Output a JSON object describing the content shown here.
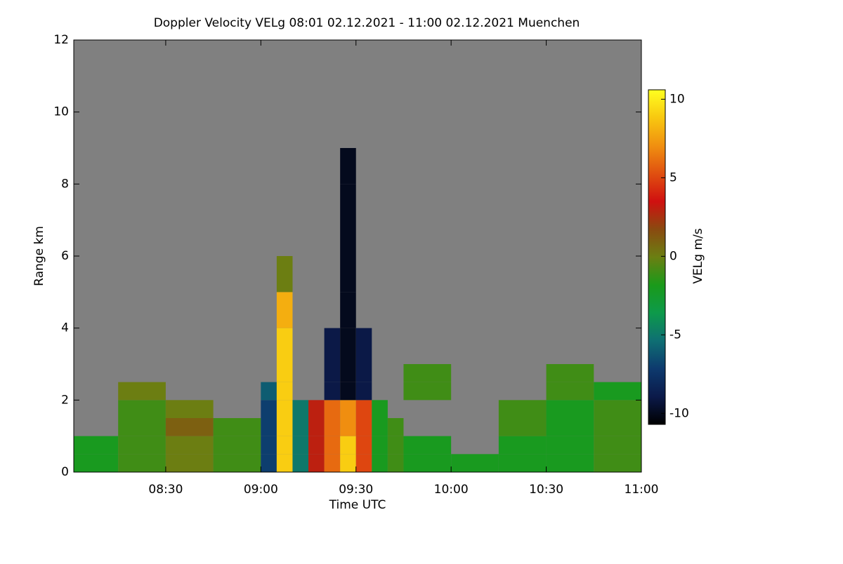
{
  "chart_data": {
    "type": "heatmap",
    "title": "Doppler Velocity VELg   08:01 02.12.2021 - 11:00 02.12.2021 Muenchen",
    "x_label": "Time UTC",
    "y_label": "Range km",
    "colorbar_label": "VELg m/s",
    "x_edges": [
      8.0167,
      8.25,
      8.5,
      8.75,
      9.0,
      9.0833,
      9.1667,
      9.25,
      9.3333,
      9.4167,
      9.5,
      9.5833,
      9.6667,
      9.75,
      10.0,
      10.25,
      10.5,
      10.75,
      11.0
    ],
    "y_edges": [
      0,
      0.5,
      1,
      1.5,
      2,
      2.5,
      3,
      4,
      5,
      6,
      8,
      9,
      12
    ],
    "z": [
      [
        -2,
        -1,
        0,
        -1,
        -7,
        9,
        -5,
        3,
        6,
        9,
        5,
        -2,
        -1,
        -2,
        -2,
        -2,
        -2,
        -1
      ],
      [
        -2,
        -1,
        0,
        -1,
        -7,
        9,
        -5,
        3,
        6,
        9,
        5,
        -2,
        -1,
        -2,
        null,
        -2,
        -2,
        -1
      ],
      [
        null,
        -1,
        1,
        -1,
        -7,
        9,
        -5,
        3,
        6,
        7,
        5,
        -2,
        -1,
        null,
        null,
        -1,
        -2,
        -1
      ],
      [
        null,
        -1,
        0,
        null,
        -7,
        9,
        -5,
        3,
        6,
        7,
        5,
        -2,
        null,
        null,
        null,
        -1,
        -2,
        -1
      ],
      [
        null,
        0,
        null,
        null,
        -6,
        9,
        null,
        null,
        -9,
        -10,
        -9,
        null,
        null,
        -1,
        null,
        null,
        -1,
        -2
      ],
      [
        null,
        null,
        null,
        null,
        null,
        9,
        null,
        null,
        -9,
        -10,
        -9,
        null,
        null,
        -1,
        null,
        null,
        -1,
        null
      ],
      [
        null,
        null,
        null,
        null,
        null,
        9,
        null,
        null,
        -9,
        -10,
        -9,
        null,
        null,
        null,
        null,
        null,
        null,
        null
      ],
      [
        null,
        null,
        null,
        null,
        null,
        8,
        null,
        null,
        null,
        -10,
        null,
        null,
        null,
        null,
        null,
        null,
        null,
        null
      ],
      [
        null,
        null,
        null,
        null,
        null,
        0,
        null,
        null,
        null,
        -10,
        null,
        null,
        null,
        null,
        null,
        null,
        null,
        null
      ],
      [
        null,
        null,
        null,
        null,
        null,
        null,
        null,
        null,
        null,
        -10,
        null,
        null,
        null,
        null,
        null,
        null,
        null,
        null
      ],
      [
        null,
        null,
        null,
        null,
        null,
        null,
        null,
        null,
        null,
        -10,
        null,
        null,
        null,
        null,
        null,
        null,
        null,
        null
      ],
      [
        null,
        null,
        null,
        null,
        null,
        null,
        null,
        null,
        null,
        null,
        null,
        null,
        null,
        null,
        null,
        null,
        null,
        null
      ]
    ],
    "xlim": [
      8.0167,
      11.0
    ],
    "xticks": [
      {
        "value": 8.5,
        "label": "08:30"
      },
      {
        "value": 9.0,
        "label": "09:00"
      },
      {
        "value": 9.5,
        "label": "09:30"
      },
      {
        "value": 10.0,
        "label": "10:00"
      },
      {
        "value": 10.5,
        "label": "10:30"
      },
      {
        "value": 11.0,
        "label": "11:00"
      }
    ],
    "ylim": [
      0,
      12
    ],
    "yticks": [
      0,
      2,
      4,
      6,
      8,
      10,
      12
    ],
    "zlim": [
      -10.7,
      10.6
    ],
    "zticks": [
      -10,
      -5,
      0,
      5,
      10
    ],
    "colors": [
      "#000000",
      "#0b1a4a",
      "#0d3a6e",
      "#0e6f73",
      "#0d9a4a",
      "#1a9a1a",
      "#6b7f12",
      "#8a4a10",
      "#d01010",
      "#e05010",
      "#f09010",
      "#f8c810",
      "#ffff20"
    ],
    "missing_color": "#808080"
  }
}
